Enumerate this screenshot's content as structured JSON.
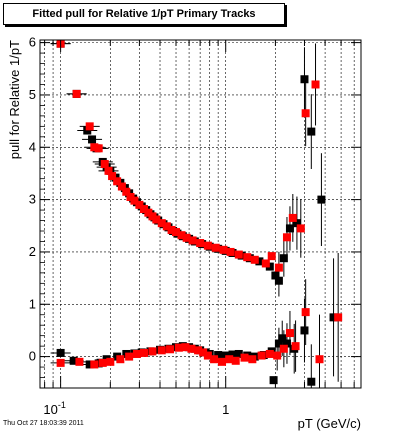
{
  "title": "Fitted pull for Relative 1/pT  Primary Tracks",
  "footer_timestamp": "Thu Oct 27 18:03:39 2011",
  "chart_data": {
    "type": "scatter",
    "title": "Fitted pull for Relative 1/pT  Primary Tracks",
    "xlabel": "pT (GeV/c)",
    "ylabel": "pull for Relative 1/pT",
    "xscale": "log",
    "xlim": [
      0.075,
      6.6
    ],
    "ylim": [
      -0.6,
      6.05
    ],
    "xticks": [
      {
        "value": 0.1,
        "label": "10^-1"
      },
      {
        "value": 1,
        "label": "1"
      }
    ],
    "yticks": [
      0,
      1,
      2,
      3,
      4,
      5,
      6
    ],
    "grid": true,
    "legend": "none",
    "colors": {
      "black_series": "#000000",
      "red_series": "#ff0000"
    },
    "series": [
      {
        "color": "black",
        "marker": "square",
        "points": [
          [
            0.1,
            5.98
          ],
          [
            0.125,
            5.02
          ],
          [
            0.145,
            4.32
          ],
          [
            0.155,
            4.15
          ],
          [
            0.165,
            3.98
          ],
          [
            0.18,
            3.72
          ],
          [
            0.19,
            3.62
          ],
          [
            0.2,
            3.55
          ],
          [
            0.215,
            3.42
          ],
          [
            0.23,
            3.32
          ],
          [
            0.245,
            3.22
          ],
          [
            0.26,
            3.12
          ],
          [
            0.275,
            3.02
          ],
          [
            0.29,
            2.95
          ],
          [
            0.31,
            2.87
          ],
          [
            0.33,
            2.8
          ],
          [
            0.35,
            2.72
          ],
          [
            0.37,
            2.66
          ],
          [
            0.39,
            2.6
          ],
          [
            0.42,
            2.53
          ],
          [
            0.45,
            2.47
          ],
          [
            0.48,
            2.4
          ],
          [
            0.51,
            2.35
          ],
          [
            0.55,
            2.3
          ],
          [
            0.6,
            2.25
          ],
          [
            0.65,
            2.2
          ],
          [
            0.72,
            2.15
          ],
          [
            0.8,
            2.1
          ],
          [
            0.9,
            2.06
          ],
          [
            1.0,
            2.02
          ],
          [
            1.1,
            1.98
          ],
          [
            1.25,
            1.93
          ],
          [
            1.4,
            1.88
          ],
          [
            1.6,
            1.82
          ],
          [
            1.85,
            1.72
          ],
          [
            2.0,
            1.55
          ],
          [
            2.1,
            1.45
          ],
          [
            2.25,
            1.88
          ],
          [
            2.45,
            2.45
          ],
          [
            2.7,
            2.55
          ],
          [
            3.0,
            5.3
          ],
          [
            3.3,
            4.3
          ],
          [
            3.8,
            3.0
          ],
          [
            0.1,
            0.07
          ],
          [
            0.12,
            -0.08
          ],
          [
            0.15,
            -0.15
          ],
          [
            0.17,
            -0.13
          ],
          [
            0.19,
            -0.05
          ],
          [
            0.22,
            0.0
          ],
          [
            0.25,
            0.05
          ],
          [
            0.28,
            0.06
          ],
          [
            0.31,
            0.08
          ],
          [
            0.35,
            0.1
          ],
          [
            0.4,
            0.13
          ],
          [
            0.45,
            0.15
          ],
          [
            0.5,
            0.18
          ],
          [
            0.55,
            0.2
          ],
          [
            0.6,
            0.18
          ],
          [
            0.65,
            0.15
          ],
          [
            0.7,
            0.12
          ],
          [
            0.75,
            0.08
          ],
          [
            0.8,
            0.05
          ],
          [
            0.9,
            0.03
          ],
          [
            1.0,
            0.02
          ],
          [
            1.1,
            0.04
          ],
          [
            1.2,
            0.05
          ],
          [
            1.35,
            0.02
          ],
          [
            1.5,
            0.0
          ],
          [
            1.7,
            0.03
          ],
          [
            1.9,
            0.1
          ],
          [
            2.1,
            0.25
          ],
          [
            2.2,
            0.35
          ],
          [
            2.35,
            0.25
          ],
          [
            2.6,
            0.15
          ],
          [
            1.95,
            -0.45
          ],
          [
            3.0,
            0.5
          ],
          [
            3.3,
            -0.48
          ],
          [
            4.5,
            0.75
          ]
        ]
      },
      {
        "color": "red",
        "marker": "square",
        "points": [
          [
            0.1,
            5.98
          ],
          [
            0.125,
            5.02
          ],
          [
            0.15,
            4.4
          ],
          [
            0.16,
            4.0
          ],
          [
            0.17,
            3.98
          ],
          [
            0.185,
            3.68
          ],
          [
            0.195,
            3.55
          ],
          [
            0.205,
            3.45
          ],
          [
            0.22,
            3.35
          ],
          [
            0.235,
            3.25
          ],
          [
            0.25,
            3.15
          ],
          [
            0.265,
            3.05
          ],
          [
            0.28,
            2.98
          ],
          [
            0.3,
            2.9
          ],
          [
            0.32,
            2.82
          ],
          [
            0.34,
            2.75
          ],
          [
            0.36,
            2.68
          ],
          [
            0.38,
            2.62
          ],
          [
            0.41,
            2.55
          ],
          [
            0.44,
            2.49
          ],
          [
            0.47,
            2.42
          ],
          [
            0.5,
            2.38
          ],
          [
            0.54,
            2.32
          ],
          [
            0.58,
            2.27
          ],
          [
            0.63,
            2.22
          ],
          [
            0.7,
            2.17
          ],
          [
            0.78,
            2.12
          ],
          [
            0.87,
            2.08
          ],
          [
            0.97,
            2.04
          ],
          [
            1.07,
            2.0
          ],
          [
            1.2,
            1.95
          ],
          [
            1.35,
            1.9
          ],
          [
            1.5,
            1.85
          ],
          [
            1.75,
            1.78
          ],
          [
            1.9,
            1.92
          ],
          [
            2.1,
            1.7
          ],
          [
            2.35,
            2.28
          ],
          [
            2.55,
            2.65
          ],
          [
            2.85,
            2.45
          ],
          [
            3.05,
            4.65
          ],
          [
            3.5,
            5.2
          ],
          [
            4.8,
            0.75
          ],
          [
            0.1,
            -0.12
          ],
          [
            0.13,
            -0.1
          ],
          [
            0.16,
            -0.15
          ],
          [
            0.18,
            -0.12
          ],
          [
            0.2,
            -0.1
          ],
          [
            0.23,
            -0.05
          ],
          [
            0.26,
            0.0
          ],
          [
            0.29,
            0.05
          ],
          [
            0.32,
            0.07
          ],
          [
            0.36,
            0.1
          ],
          [
            0.41,
            0.12
          ],
          [
            0.46,
            0.14
          ],
          [
            0.52,
            0.17
          ],
          [
            0.57,
            0.18
          ],
          [
            0.62,
            0.15
          ],
          [
            0.68,
            0.12
          ],
          [
            0.73,
            0.08
          ],
          [
            0.78,
            0.02
          ],
          [
            0.85,
            -0.05
          ],
          [
            0.95,
            -0.1
          ],
          [
            1.05,
            -0.05
          ],
          [
            1.15,
            -0.08
          ],
          [
            1.3,
            -0.02
          ],
          [
            1.45,
            -0.05
          ],
          [
            1.65,
            0.02
          ],
          [
            1.85,
            0.05
          ],
          [
            2.05,
            0.02
          ],
          [
            2.25,
            0.15
          ],
          [
            2.45,
            0.45
          ],
          [
            2.65,
            0.2
          ],
          [
            3.05,
            0.85
          ],
          [
            3.7,
            -0.05
          ]
        ]
      }
    ]
  }
}
